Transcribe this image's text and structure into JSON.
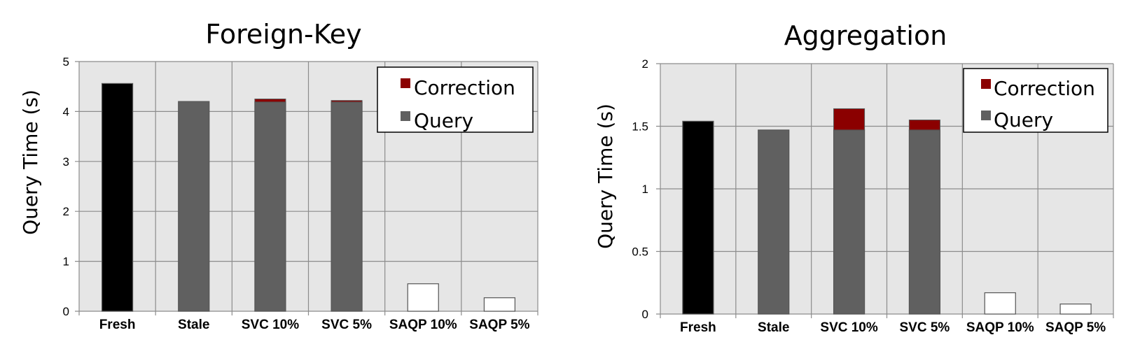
{
  "colors": {
    "plot_background": "#e6e6e6",
    "grid": "#8c8c8c",
    "fresh": "#000000",
    "query": "#606060",
    "correction": "#8b0000",
    "saqp": "#ffffff"
  },
  "chart_data": [
    {
      "type": "bar",
      "stacked": true,
      "title": "Foreign-Key",
      "xlabel": "",
      "ylabel": "Query Time (s)",
      "ylim": [
        0,
        5
      ],
      "yticks": [
        "0",
        "1",
        "2",
        "3",
        "4",
        "5"
      ],
      "grid": true,
      "legend_position": "top-right",
      "legend": [
        "Correction",
        "Query"
      ],
      "categories": [
        "Fresh",
        "Stale",
        "SVC 10%",
        "SVC 5%",
        "SAQP 10%",
        "SAQP 5%"
      ],
      "bar_colors": [
        "fresh",
        "query",
        "query",
        "query",
        "saqp",
        "saqp"
      ],
      "series": [
        {
          "name": "Query",
          "values": [
            4.56,
            4.2,
            4.19,
            4.19,
            0.55,
            0.27
          ]
        },
        {
          "name": "Correction",
          "values": [
            0,
            0,
            0.06,
            0.03,
            0,
            0
          ]
        }
      ]
    },
    {
      "type": "bar",
      "stacked": true,
      "title": "Aggregation",
      "xlabel": "",
      "ylabel": "Query Time (s)",
      "ylim": [
        0,
        2
      ],
      "yticks": [
        "0",
        "0.5",
        "1",
        "1.5",
        "2"
      ],
      "grid": true,
      "legend_position": "top-right",
      "legend": [
        "Correction",
        "Query"
      ],
      "categories": [
        "Fresh",
        "Stale",
        "SVC 10%",
        "SVC 5%",
        "SAQP 10%",
        "SAQP 5%"
      ],
      "bar_colors": [
        "fresh",
        "query",
        "query",
        "query",
        "saqp",
        "saqp"
      ],
      "series": [
        {
          "name": "Query",
          "values": [
            1.54,
            1.47,
            1.47,
            1.47,
            0.17,
            0.08
          ]
        },
        {
          "name": "Correction",
          "values": [
            0,
            0,
            0.17,
            0.08,
            0,
            0
          ]
        }
      ]
    }
  ]
}
